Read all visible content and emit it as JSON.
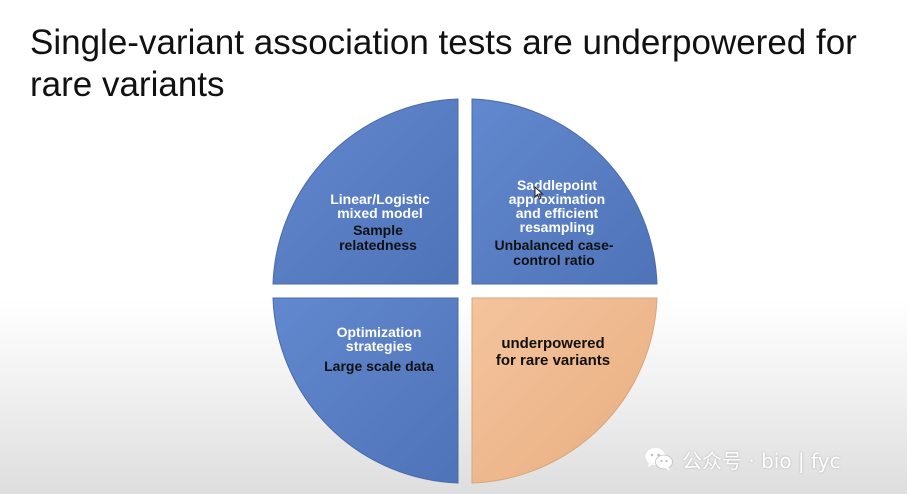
{
  "title": "Single-variant association tests are underpowered for rare variants",
  "quadrants": [
    {
      "id": "top-left",
      "heading": "Linear/Logistic mixed model",
      "sub": "Sample relatedness",
      "color": "#5b7fc7"
    },
    {
      "id": "top-right",
      "heading": "Saddlepoint approximation and efficient resampling",
      "sub": "Unbalanced case-control ratio",
      "color": "#5b7fc7"
    },
    {
      "id": "bottom-left",
      "heading": "Optimization strategies",
      "sub": "Large scale data",
      "color": "#5b7fc7"
    },
    {
      "id": "bottom-right",
      "text": "underpowered for rare variants",
      "color": "#f0b98f"
    }
  ],
  "watermark": {
    "text": "公众号 · bio | fyc",
    "icon": "wechat-icon"
  }
}
